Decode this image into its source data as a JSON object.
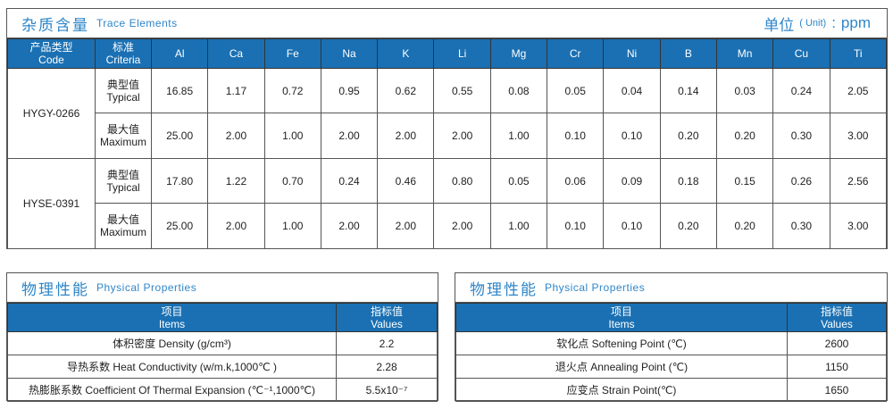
{
  "trace": {
    "title_cn": "杂质含量",
    "title_en": "Trace Elements",
    "unit_cn": "单位",
    "unit_en": "( Unit)",
    "unit_sep": ":",
    "unit": "ppm",
    "header_code_cn": "产品类型",
    "header_code_en": "Code",
    "header_criteria_cn": "标准",
    "header_criteria_en": "Criteria",
    "elements": [
      "Al",
      "Ca",
      "Fe",
      "Na",
      "K",
      "Li",
      "Mg",
      "Cr",
      "Ni",
      "B",
      "Mn",
      "Cu",
      "Ti"
    ],
    "products": [
      {
        "code": "HYGY-0266",
        "rows": [
          {
            "criteria_cn": "典型值",
            "criteria_en": "Typical",
            "values": [
              "16.85",
              "1.17",
              "0.72",
              "0.95",
              "0.62",
              "0.55",
              "0.08",
              "0.05",
              "0.04",
              "0.14",
              "0.03",
              "0.24",
              "2.05"
            ]
          },
          {
            "criteria_cn": "最大值",
            "criteria_en": "Maximum",
            "values": [
              "25.00",
              "2.00",
              "1.00",
              "2.00",
              "2.00",
              "2.00",
              "1.00",
              "0.10",
              "0.10",
              "0.20",
              "0.20",
              "0.30",
              "3.00"
            ]
          }
        ]
      },
      {
        "code": "HYSE-0391",
        "rows": [
          {
            "criteria_cn": "典型值",
            "criteria_en": "Typical",
            "values": [
              "17.80",
              "1.22",
              "0.70",
              "0.24",
              "0.46",
              "0.80",
              "0.05",
              "0.06",
              "0.09",
              "0.18",
              "0.15",
              "0.26",
              "2.56"
            ]
          },
          {
            "criteria_cn": "最大值",
            "criteria_en": "Maximum",
            "values": [
              "25.00",
              "2.00",
              "1.00",
              "2.00",
              "2.00",
              "2.00",
              "1.00",
              "0.10",
              "0.10",
              "0.20",
              "0.20",
              "0.30",
              "3.00"
            ]
          }
        ]
      }
    ]
  },
  "physical_left": {
    "title_cn": "物理性能",
    "title_en": "Physical  Properties",
    "items_cn": "项目",
    "items_en": "Items",
    "values_cn": "指标值",
    "values_en": "Values",
    "rows": [
      {
        "item": "体积密度 Density (g/cm³)",
        "value": "2.2"
      },
      {
        "item": "导热系数 Heat Conductivity (w/m.k,1000℃ )",
        "value": "2.28"
      },
      {
        "item": "热膨胀系数 Coefficient Of Thermal Expansion (℃⁻¹,1000℃)",
        "value": "5.5x10⁻⁷"
      }
    ]
  },
  "physical_right": {
    "title_cn": "物理性能",
    "title_en": "Physical  Properties",
    "items_cn": "项目",
    "items_en": "Items",
    "values_cn": "指标值",
    "values_en": "Values",
    "rows": [
      {
        "item": "软化点 Softening Point (℃)",
        "value": "2600"
      },
      {
        "item": "退火点 Annealing Point (℃)",
        "value": "1150"
      },
      {
        "item": "应变点 Strain Point(℃)",
        "value": "1650"
      }
    ]
  },
  "colors": {
    "header": "#1a70b3",
    "title": "#2f86c8"
  }
}
